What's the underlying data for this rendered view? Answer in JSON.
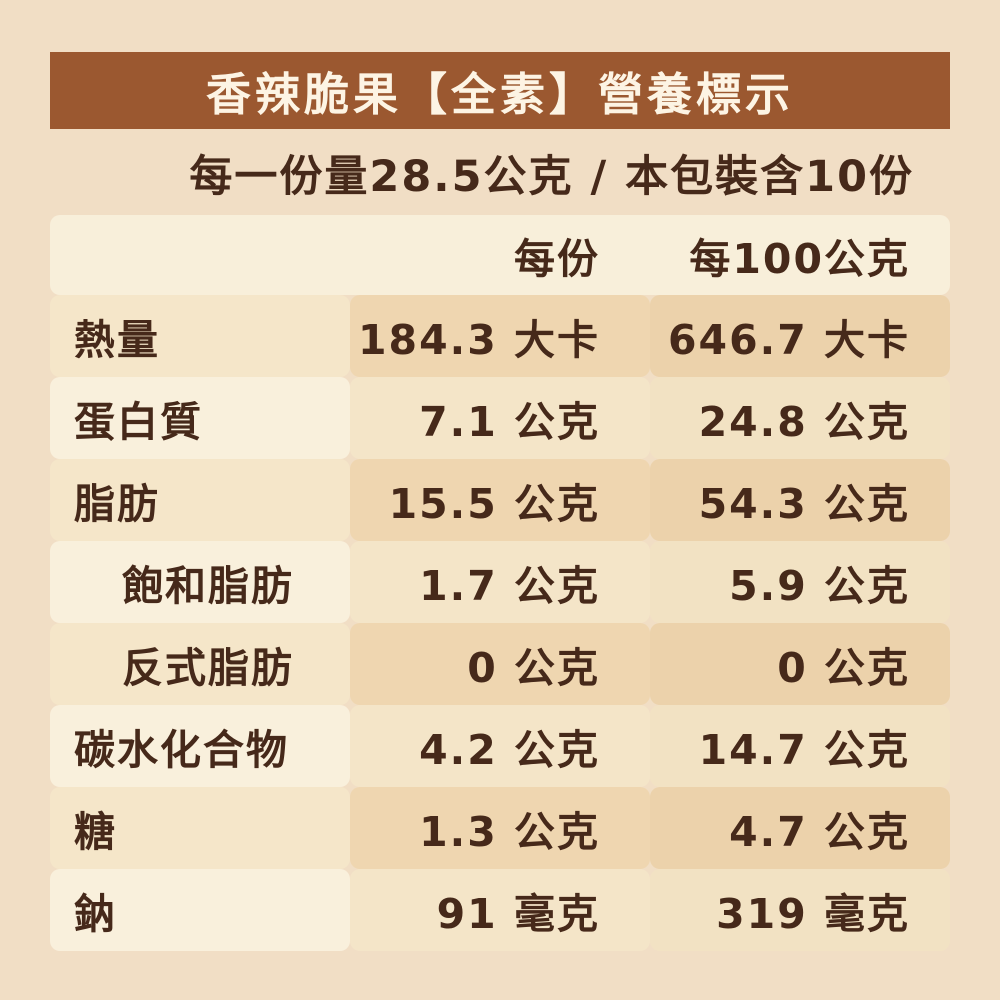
{
  "header": {
    "title": "香辣脆果【全素】營養標示"
  },
  "serving_info": "每一份量28.5公克 / 本包裝含10份",
  "table": {
    "col_headers": {
      "per_serving": "每份",
      "per_100g": "每100公克"
    },
    "rows": [
      {
        "label": "熱量",
        "indent": false,
        "per_serving": "184.3 大卡",
        "per_100g": "646.7 大卡"
      },
      {
        "label": "蛋白質",
        "indent": false,
        "per_serving": "7.1 公克",
        "per_100g": "24.8 公克"
      },
      {
        "label": "脂肪",
        "indent": false,
        "per_serving": "15.5 公克",
        "per_100g": "54.3 公克"
      },
      {
        "label": "飽和脂肪",
        "indent": true,
        "per_serving": "1.7 公克",
        "per_100g": "5.9 公克"
      },
      {
        "label": "反式脂肪",
        "indent": true,
        "per_serving": "0 公克",
        "per_100g": "0 公克"
      },
      {
        "label": "碳水化合物",
        "indent": false,
        "per_serving": "4.2 公克",
        "per_100g": "14.7 公克"
      },
      {
        "label": "糖",
        "indent": false,
        "per_serving": "1.3 公克",
        "per_100g": "4.7 公克"
      },
      {
        "label": "鈉",
        "indent": false,
        "per_serving": "91 毫克",
        "per_100g": "319 毫克"
      }
    ]
  },
  "colors": {
    "page_background": "#f1dec5",
    "title_bar": "#9b5830",
    "title_text": "#fdf4e4",
    "body_text": "#46291a",
    "header_row": "#f8efda",
    "dark_row_label": "#f5e6c9",
    "dark_row_value_mid": "#efd6b0",
    "dark_row_value_right": "#ecd2ab",
    "light_row_label": "#f9f0dc",
    "light_row_value_mid": "#f4e5c8",
    "light_row_value_right": "#f2e2c3"
  }
}
